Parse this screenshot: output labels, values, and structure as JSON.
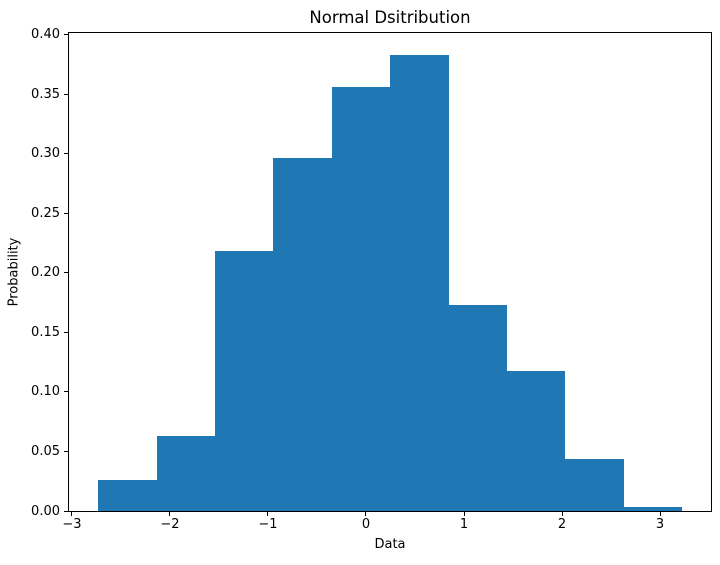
{
  "figure": {
    "background": "#ffffff"
  },
  "chart_data": {
    "type": "bar",
    "subtype": "histogram",
    "title": "Normal Dsitribution",
    "xlabel": "Data",
    "ylabel": "Probability",
    "grid": false,
    "legend_position": "none",
    "bar_color": "#1f77b4",
    "frame_color": "#000000",
    "xlim": [
      -3.03,
      3.52
    ],
    "ylim": [
      0,
      0.4015
    ],
    "bin_edges": [
      -2.73,
      -2.135,
      -1.539,
      -0.944,
      -0.348,
      0.248,
      0.843,
      1.439,
      2.034,
      2.63,
      3.225
    ],
    "values": [
      0.026,
      0.0633,
      0.2187,
      0.2963,
      0.3564,
      0.3833,
      0.1728,
      0.1176,
      0.0437,
      0.0036
    ],
    "xticks": {
      "values": [
        -3,
        -2,
        -1,
        0,
        1,
        2,
        3
      ],
      "labels": [
        "−3",
        "−2",
        "−1",
        "0",
        "1",
        "2",
        "3"
      ]
    },
    "yticks": {
      "values": [
        0.0,
        0.05,
        0.1,
        0.15,
        0.2,
        0.25,
        0.3,
        0.35,
        0.4
      ],
      "labels": [
        "0.00",
        "0.05",
        "0.10",
        "0.15",
        "0.20",
        "0.25",
        "0.30",
        "0.35",
        "0.40"
      ]
    }
  }
}
